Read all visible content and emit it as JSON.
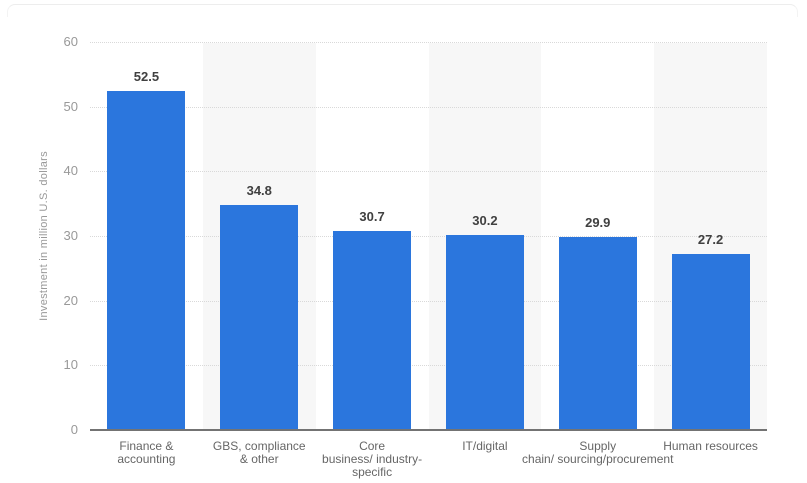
{
  "chart_data": {
    "type": "bar",
    "title": "",
    "xlabel": "",
    "ylabel": "Investment in million U.S. dollars",
    "categories": [
      "Finance & accounting",
      "GBS, compliance & other",
      "Core business/ industry-specific",
      "IT/digital",
      "Supply chain/ sourcing/procurement",
      "Human resources"
    ],
    "category_lines": [
      [
        "Finance &",
        "accounting"
      ],
      [
        "GBS, compliance",
        "& other"
      ],
      [
        "Core",
        "business/ industry-",
        "specific"
      ],
      [
        "IT/digital"
      ],
      [
        "Supply",
        "chain/ sourcing/procurement"
      ],
      [
        "Human resources"
      ]
    ],
    "values": [
      52.5,
      34.8,
      30.7,
      30.2,
      29.9,
      27.2
    ],
    "value_labels": [
      "52.5",
      "34.8",
      "30.7",
      "30.2",
      "29.9",
      "27.2"
    ],
    "ylim": [
      0,
      60
    ],
    "yticks": [
      0,
      10,
      20,
      30,
      40,
      50,
      60
    ],
    "grid": "horizontal-dotted",
    "legend": "none",
    "striped_columns": [
      1,
      3,
      5
    ],
    "colors": {
      "bar": "#2b76dd",
      "stripe": "#f7f7f7",
      "gridline": "#d9d9d9",
      "axis_line": "#737373",
      "tick_label": "#999999",
      "value_label": "#404040",
      "category_label": "#666666",
      "background": "#ffffff"
    }
  }
}
